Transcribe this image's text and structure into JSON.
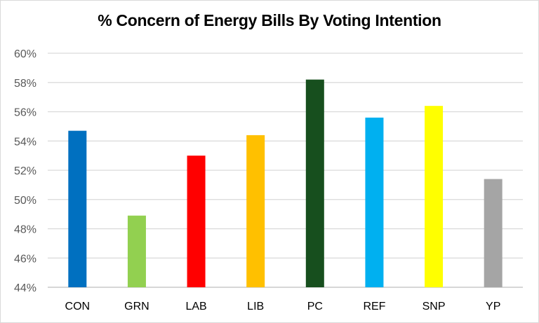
{
  "chart_data": {
    "type": "bar",
    "title": "% Concern of Energy Bills By Voting Intention",
    "xlabel": "",
    "ylabel": "",
    "categories": [
      "CON",
      "GRN",
      "LAB",
      "LIB",
      "PC",
      "REF",
      "SNP",
      "YP"
    ],
    "values": [
      54.7,
      48.9,
      53.0,
      54.4,
      58.2,
      55.6,
      56.4,
      51.4
    ],
    "colors": [
      "#0070C0",
      "#92D050",
      "#FF0000",
      "#FFC000",
      "#174F1E",
      "#00B0F0",
      "#FFFF00",
      "#A5A5A5"
    ],
    "ylim": [
      44,
      60
    ],
    "yticks": [
      44,
      46,
      48,
      50,
      52,
      54,
      56,
      58,
      60
    ],
    "ytick_labels": [
      "44%",
      "46%",
      "48%",
      "50%",
      "52%",
      "54%",
      "56%",
      "58%",
      "60%"
    ],
    "grid": true,
    "legend": "none"
  }
}
